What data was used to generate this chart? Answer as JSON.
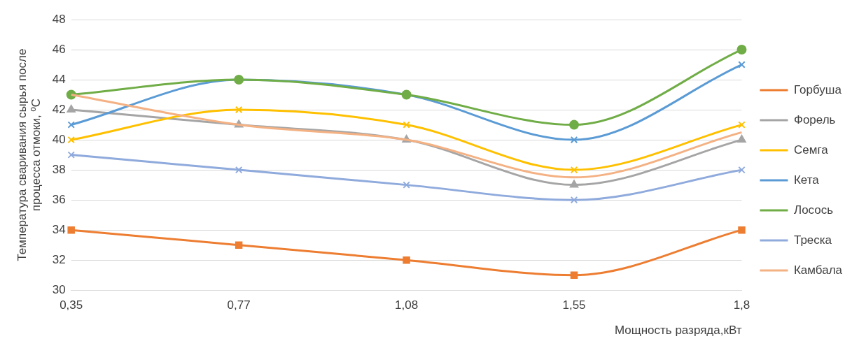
{
  "chart_data": {
    "type": "line",
    "xlabel": "Мощность разряда,кВт",
    "ylabel": "Температура сваривания сырья после процесса отмоки, ºC",
    "categories": [
      "0,35",
      "0,77",
      "1,08",
      "1,55",
      "1,8"
    ],
    "series": [
      {
        "name": "Горбуша",
        "color": "#ed7d31",
        "marker": "square",
        "values": [
          34,
          33,
          32,
          31,
          34
        ]
      },
      {
        "name": "Форель",
        "color": "#a5a5a5",
        "marker": "triangle",
        "values": [
          42,
          41,
          40,
          37,
          40
        ]
      },
      {
        "name": "Семга",
        "color": "#ffc000",
        "marker": "cross",
        "values": [
          40,
          42,
          41,
          38,
          41
        ]
      },
      {
        "name": "Кета",
        "color": "#5b9bd5",
        "marker": "cross",
        "values": [
          41,
          44,
          43,
          40,
          45
        ]
      },
      {
        "name": "Лосось",
        "color": "#70ad47",
        "marker": "circle",
        "values": [
          43,
          44,
          43,
          41,
          46
        ]
      },
      {
        "name": "Треска",
        "color": "#8faadc",
        "marker": "cross",
        "values": [
          39,
          38,
          37,
          36,
          38
        ]
      },
      {
        "name": "Камбала",
        "color": "#f4b183",
        "marker": "none",
        "values": [
          43,
          41,
          40,
          37.5,
          40.5
        ]
      }
    ],
    "ylim": [
      30,
      48
    ],
    "yticks": [
      30,
      32,
      34,
      36,
      38,
      40,
      42,
      44,
      46,
      48
    ],
    "grid": "y",
    "legend": "right"
  }
}
